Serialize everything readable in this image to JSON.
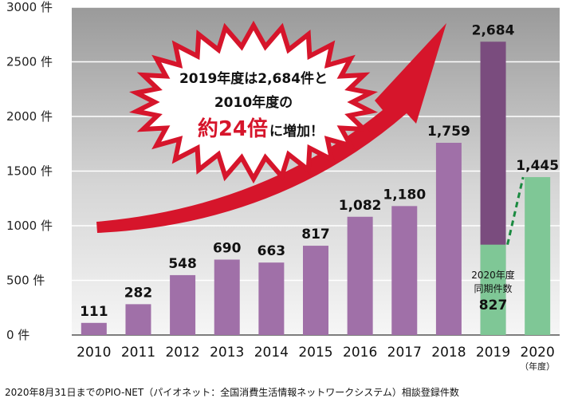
{
  "chart_data": {
    "type": "bar",
    "categories": [
      "2010",
      "2011",
      "2012",
      "2013",
      "2014",
      "2015",
      "2016",
      "2017",
      "2018",
      "2019",
      "2020"
    ],
    "values": [
      111,
      282,
      548,
      690,
      663,
      817,
      1082,
      1180,
      1759,
      2684,
      1445
    ],
    "value_labels": [
      "111",
      "282",
      "548",
      "690",
      "663",
      "817",
      "1,082",
      "1,180",
      "1,759",
      "2,684",
      "1,445"
    ],
    "ylim": [
      0,
      3000
    ],
    "yticks": [
      0,
      500,
      1000,
      1500,
      2000,
      2500,
      3000
    ],
    "ytick_labels": [
      "0 件",
      "500 件",
      "1000 件",
      "1500 件",
      "2000 件",
      "2500 件",
      "3000 件"
    ],
    "x_unit": "（年度）",
    "comparison": {
      "category": "2019",
      "value": 827,
      "label_line1": "2020年度",
      "label_line2": "同期件数",
      "value_label": "827"
    },
    "annotation": {
      "line1": "2019年度は2,684件と",
      "line2": "2010年度の",
      "line3_emphasis": "約24倍",
      "line3_rest": "に増加！"
    },
    "colors": {
      "bar": "#a070a8",
      "bar_2019": "#7a4c7e",
      "comparison_bar": "#7fc796",
      "arrow": "#d6152b",
      "emphasis_text": "#d6152b",
      "dashed_line": "#1a8a40"
    }
  },
  "footnote": "2020年8月31日までのPIO-NET（パイオネット：全国消費生活情報ネットワークシステム）相談登録件数"
}
